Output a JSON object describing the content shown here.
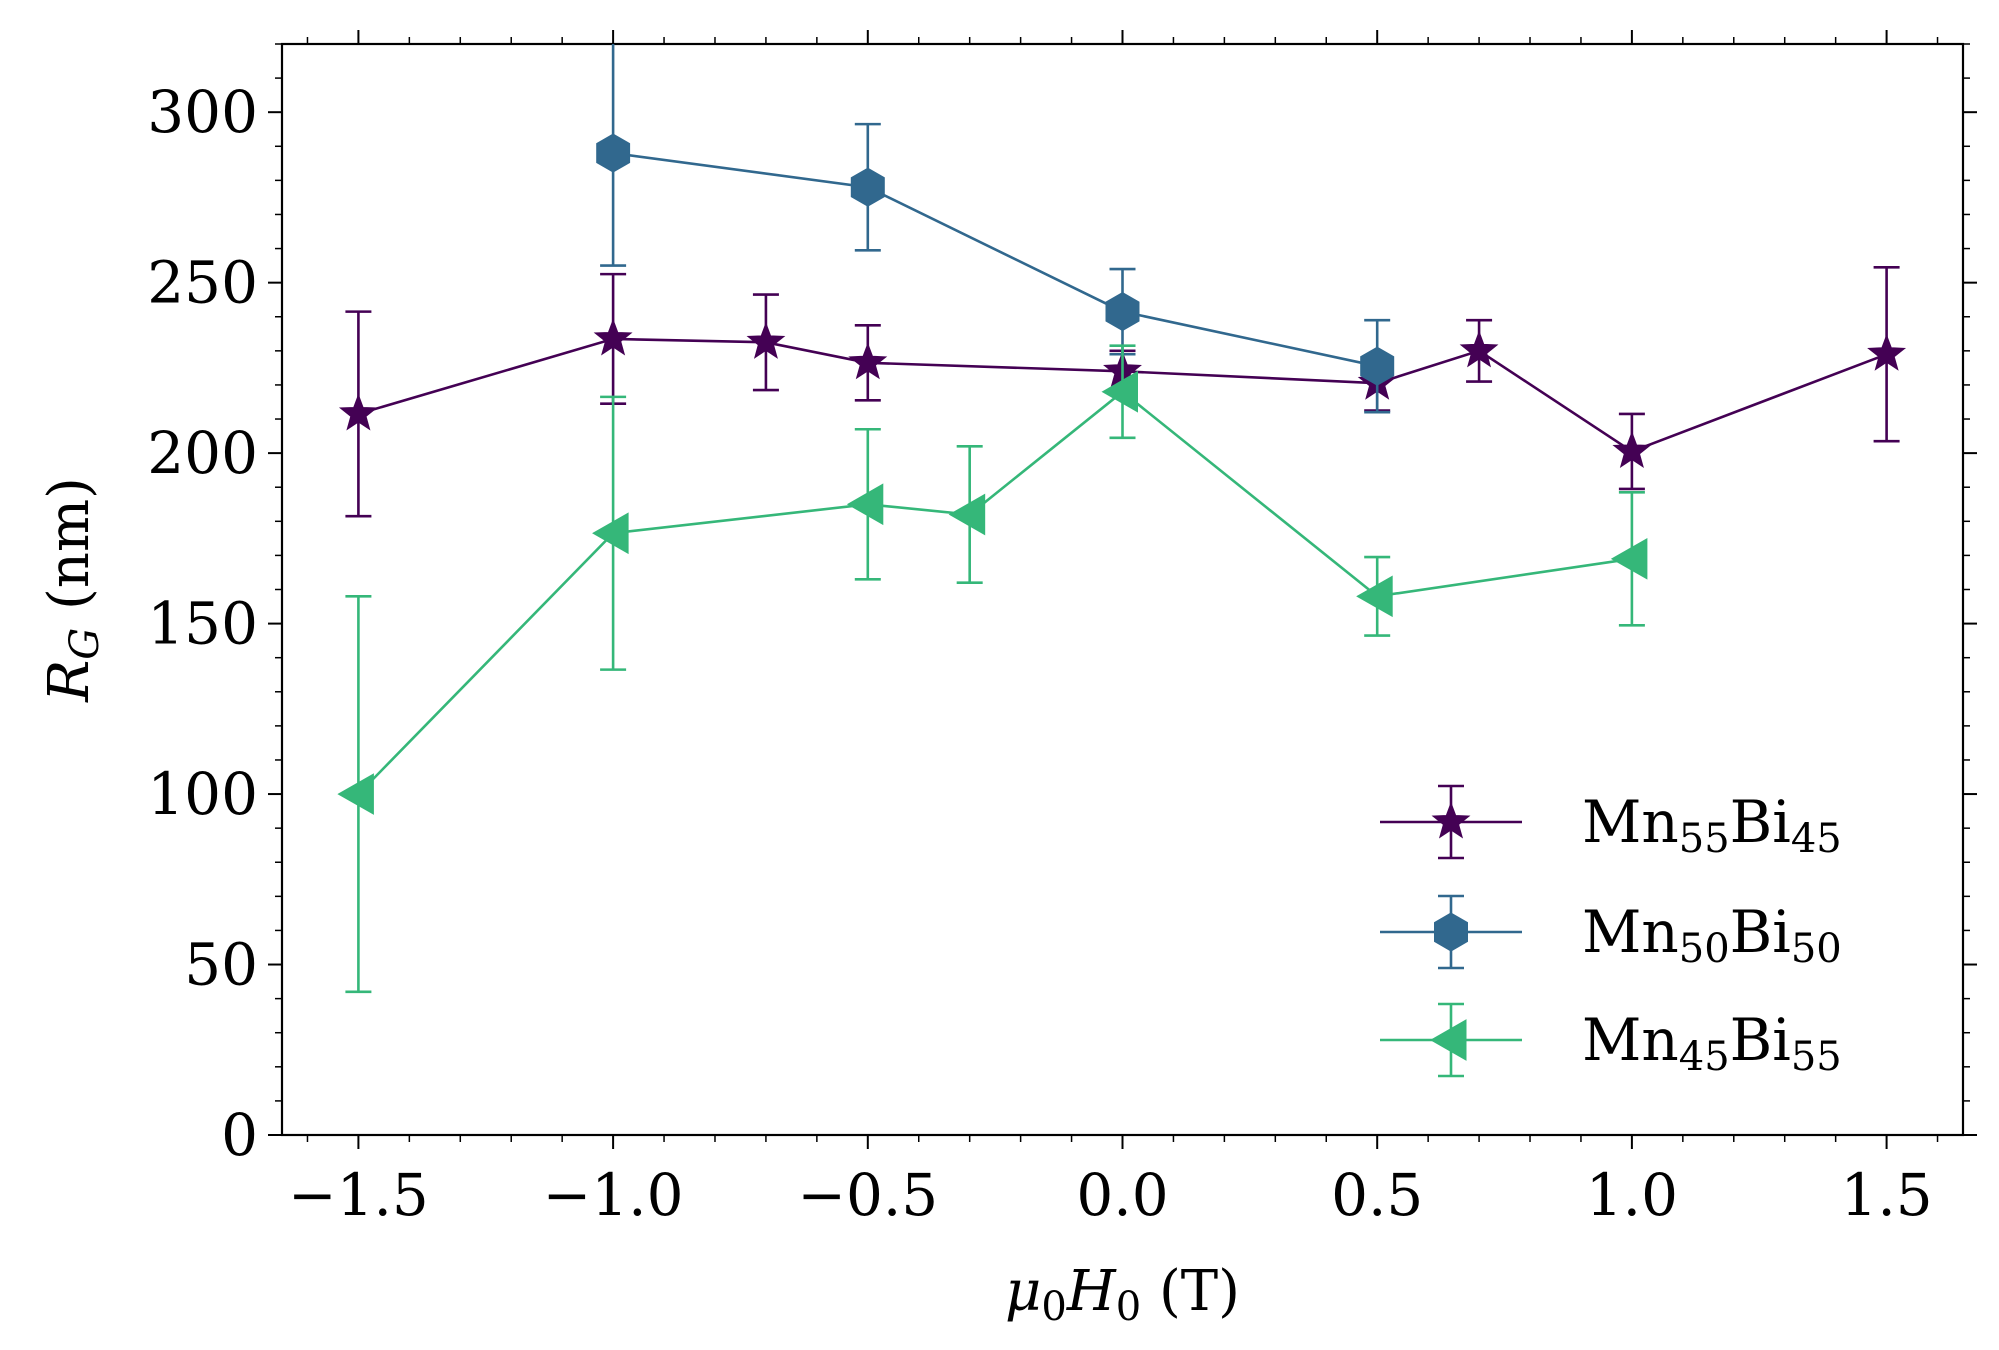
{
  "chart_data": {
    "type": "line",
    "title": "",
    "xlabel": {
      "base": "μ",
      "sub": "0",
      "base2": "H",
      "sub2": "0",
      "unit": " (T)"
    },
    "ylabel": {
      "base": "R",
      "sub": "G",
      "unit": " (nm)"
    },
    "xlim": [
      -1.65,
      1.65
    ],
    "ylim": [
      0,
      320
    ],
    "xticks": [
      -1.5,
      -1.0,
      -0.5,
      0.0,
      0.5,
      1.0,
      1.5
    ],
    "xtick_labels": [
      "−1.5",
      "−1.0",
      "−0.5",
      "0.0",
      "0.5",
      "1.0",
      "1.5"
    ],
    "yticks": [
      0,
      50,
      100,
      150,
      200,
      250,
      300
    ],
    "ytick_labels": [
      "0",
      "50",
      "100",
      "150",
      "200",
      "250",
      "300"
    ],
    "legend_position": "lower-right",
    "series": [
      {
        "name": "Mn55Bi45",
        "label_parts": [
          "Mn",
          "55",
          "Bi",
          "45"
        ],
        "color": "#440154",
        "marker": "star",
        "x": [
          -1.5,
          -1.0,
          -0.7,
          -0.5,
          0.0,
          0.5,
          0.7,
          1.0,
          1.5
        ],
        "y": [
          211.5,
          233.5,
          232.5,
          226.5,
          224.0,
          220.5,
          230.0,
          200.5,
          229.0
        ],
        "err": [
          30,
          19,
          14,
          11,
          6,
          8,
          9,
          11,
          25.5
        ]
      },
      {
        "name": "Mn50Bi50",
        "label_parts": [
          "Mn",
          "50",
          "Bi",
          "50"
        ],
        "color": "#31688e",
        "marker": "hexagon",
        "x": [
          -1.0,
          -0.5,
          0.0,
          0.5
        ],
        "y": [
          288.0,
          278.0,
          241.5,
          225.5
        ],
        "err": [
          33,
          18.5,
          12.5,
          13.5
        ]
      },
      {
        "name": "Mn45Bi55",
        "label_parts": [
          "Mn",
          "45",
          "Bi",
          "55"
        ],
        "color": "#35b779",
        "marker": "triangle-left",
        "x": [
          -1.5,
          -1.0,
          -0.5,
          -0.3,
          0.0,
          0.5,
          1.0
        ],
        "y": [
          100.0,
          176.5,
          185.0,
          182.0,
          218.0,
          158.0,
          169.0
        ],
        "err": [
          58,
          40,
          22,
          20,
          13.5,
          11.5,
          19.5
        ]
      }
    ]
  }
}
